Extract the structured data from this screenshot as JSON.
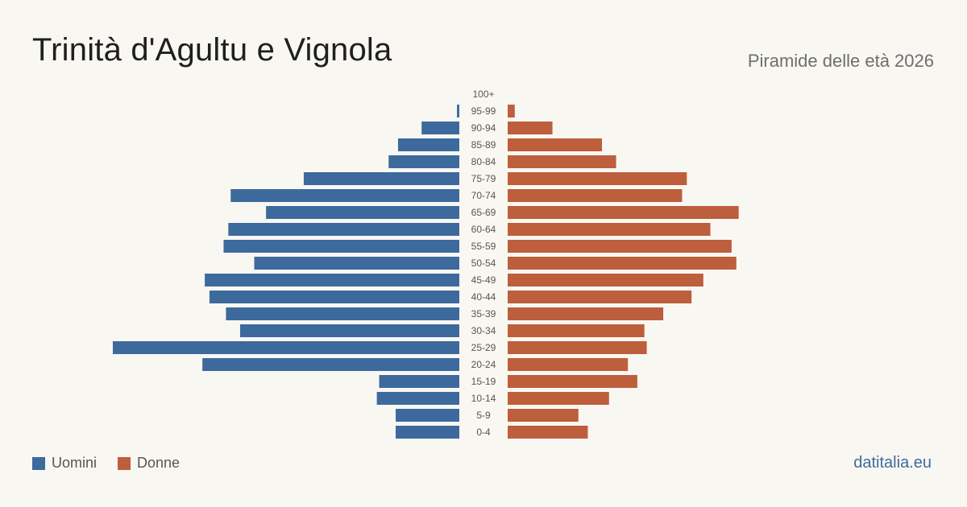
{
  "header": {
    "title": "Trinità d'Agultu e Vignola",
    "subtitle": "Piramide delle età 2026"
  },
  "legend": {
    "men_label": "Uomini",
    "women_label": "Donne"
  },
  "footer": {
    "source": "datitalia.eu"
  },
  "colors": {
    "men": "#3d6a9c",
    "women": "#bd5e3c",
    "background": "#f9f7f2"
  },
  "chart_data": {
    "type": "bar",
    "orientation": "horizontal-pyramid",
    "categories": [
      "100+",
      "95-99",
      "90-94",
      "85-89",
      "80-84",
      "75-79",
      "70-74",
      "65-69",
      "60-64",
      "55-59",
      "50-54",
      "45-49",
      "40-44",
      "35-39",
      "30-34",
      "25-29",
      "20-24",
      "15-19",
      "10-14",
      "5-9",
      "0-4"
    ],
    "series": [
      {
        "name": "Uomini",
        "side": "left",
        "values": [
          0,
          1,
          16,
          26,
          30,
          66,
          97,
          82,
          98,
          100,
          87,
          108,
          106,
          99,
          93,
          147,
          109,
          34,
          35,
          27,
          27
        ]
      },
      {
        "name": "Donne",
        "side": "right",
        "values": [
          0,
          3,
          19,
          40,
          46,
          76,
          74,
          98,
          86,
          95,
          97,
          83,
          78,
          66,
          58,
          59,
          51,
          55,
          43,
          30,
          34
        ]
      }
    ],
    "max_value": 147,
    "grid": false,
    "legend_position": "bottom-left"
  }
}
